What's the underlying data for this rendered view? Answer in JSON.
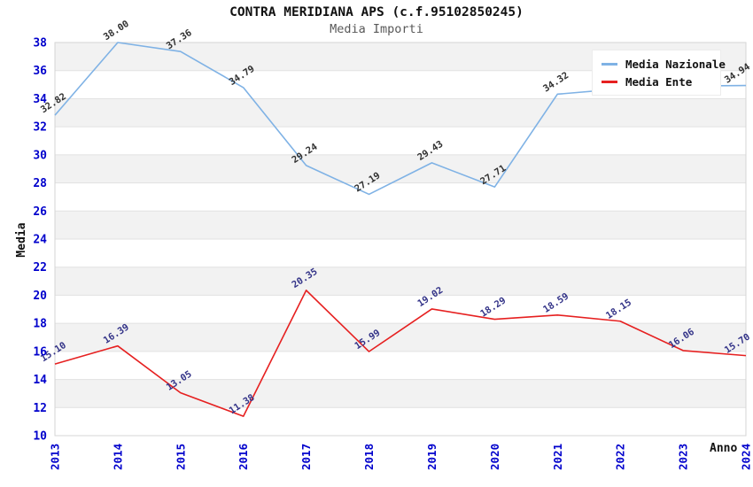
{
  "page": {
    "background": "#ffffff"
  },
  "chart_data": {
    "type": "line",
    "title": "CONTRA MERIDIANA APS (c.f.95102850245)",
    "subtitle": "Media Importi",
    "xlabel": "Anno",
    "ylabel": "Media",
    "x": [
      "2013",
      "2014",
      "2015",
      "2016",
      "2017",
      "2018",
      "2019",
      "2020",
      "2021",
      "2022",
      "2023",
      "2024"
    ],
    "ylim": [
      10,
      38
    ],
    "ytick_step": 2,
    "grid": "alternating-horizontal-bands",
    "legend_position": "top-right",
    "point_label_format": "2-decimals",
    "note_hidden_points": "2022 and 2023 values of Media Nazionale are covered by the legend (estimated from line)",
    "colors": {
      "tick_label": "#0000cc",
      "band": "#f2f2f2",
      "gridline": "#e1e1e1",
      "plot_border": "#d4d4d4"
    },
    "series": [
      {
        "name": "Media Nazionale",
        "color": "#7FB2E5",
        "label_color": "#303030",
        "values": [
          32.82,
          38.0,
          37.36,
          34.79,
          29.24,
          27.19,
          29.43,
          27.71,
          34.32,
          34.7,
          34.9,
          34.94
        ]
      },
      {
        "name": "Media Ente",
        "color": "#E62020",
        "label_color": "#333388",
        "values": [
          15.1,
          16.39,
          13.05,
          11.38,
          20.35,
          15.99,
          19.02,
          18.29,
          18.59,
          18.15,
          16.06,
          15.7
        ]
      }
    ]
  }
}
